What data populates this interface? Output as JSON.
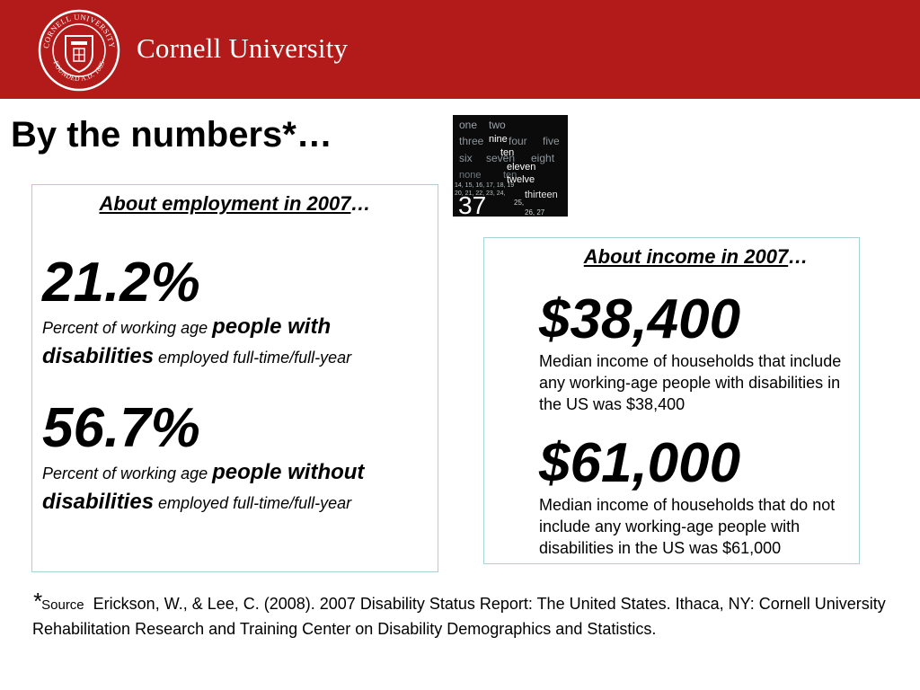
{
  "header": {
    "brand": "Cornell University",
    "seal_text_top": "CORNELL UNIVERSITY",
    "seal_text_bottom": "FOUNDED A.D. 1865",
    "colors": {
      "header_bg": "#b31b1b",
      "text": "#ffffff"
    }
  },
  "title": "By the numbers*…",
  "numbers_image": {
    "words": [
      "one",
      "two",
      "nine",
      "three",
      "four",
      "five",
      "ten",
      "six",
      "seven",
      "eight",
      "eleven",
      "none",
      "ten",
      "twelve",
      "14, 15, 16, 17, 18, 19",
      "20, 21, 22, 23, 24,",
      "thirteen",
      "37",
      "25,",
      "26, 27"
    ]
  },
  "employment": {
    "heading_underlined": "About employment in 2007",
    "heading_suffix": "…",
    "items": [
      {
        "stat": "21.2%",
        "desc_pre": "Percent of working age ",
        "desc_bold": "people with disabilities",
        "desc_post": " employed full-time/full-year"
      },
      {
        "stat": "56.7%",
        "desc_pre": "Percent of working age ",
        "desc_bold": "people without disabilities",
        "desc_post": " employed full-time/full-year"
      }
    ]
  },
  "income": {
    "heading_underlined": "About income in 2007",
    "heading_suffix": "…",
    "items": [
      {
        "stat": "$38,400",
        "desc": "Median income of households that include any working-age people with disabilities in the US was $38,400"
      },
      {
        "stat": "$61,000",
        "desc": "Median income of households that do not include any working-age people with disabilities in the US was $61,000"
      }
    ]
  },
  "source": {
    "star": "*",
    "label": "Source",
    "citation": "Erickson, W., & Lee, C. (2008). 2007 Disability Status Report: The United States. Ithaca, NY: Cornell University Rehabilitation Research and Training Center on Disability Demographics and Statistics."
  },
  "colors": {
    "box_border": "#a7d3d6"
  }
}
